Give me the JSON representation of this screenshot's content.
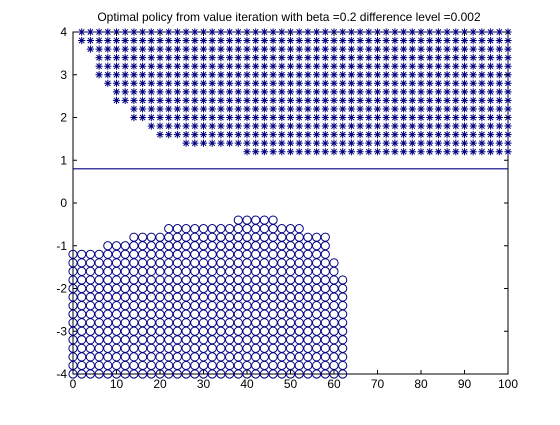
{
  "chart_data": {
    "type": "scatter",
    "title": "Optimal policy from value iteration with beta =0.2 difference level =0.002",
    "xlabel": "",
    "ylabel": "",
    "xlim": [
      0,
      100
    ],
    "ylim": [
      -4,
      4
    ],
    "xticks": [
      "0",
      "10",
      "20",
      "30",
      "40",
      "50",
      "60",
      "70",
      "80",
      "90",
      "100"
    ],
    "yticks": [
      "-4",
      "-3",
      "-2",
      "-1",
      "0",
      "1",
      "2",
      "3",
      "4"
    ],
    "grid": false,
    "colors": {
      "marker": "#000080",
      "axis": "#000000",
      "background": "#ffffff"
    },
    "reference_line": {
      "y": 0.8,
      "x_range": [
        0,
        100
      ]
    },
    "marker_step": {
      "x": 2,
      "y": 0.2
    },
    "series": [
      {
        "marker": "star",
        "description_x": "x values 2..100 step 2; for each x, stars from y_min up to 4",
        "y_min_by_x": [
          [
            2,
            3.8
          ],
          [
            4,
            3.6
          ],
          [
            6,
            3.0
          ],
          [
            8,
            2.8
          ],
          [
            10,
            2.4
          ],
          [
            12,
            2.4
          ],
          [
            14,
            2.0
          ],
          [
            16,
            2.0
          ],
          [
            18,
            1.8
          ],
          [
            20,
            1.6
          ],
          [
            22,
            1.6
          ],
          [
            24,
            1.6
          ],
          [
            26,
            1.4
          ],
          [
            28,
            1.4
          ],
          [
            30,
            1.4
          ],
          [
            32,
            1.4
          ],
          [
            34,
            1.4
          ],
          [
            36,
            1.4
          ],
          [
            38,
            1.4
          ],
          [
            40,
            1.2
          ],
          [
            42,
            1.2
          ],
          [
            44,
            1.2
          ],
          [
            46,
            1.2
          ],
          [
            48,
            1.2
          ],
          [
            50,
            1.2
          ],
          [
            52,
            1.2
          ],
          [
            54,
            1.2
          ],
          [
            56,
            1.2
          ],
          [
            58,
            1.2
          ],
          [
            60,
            1.2
          ],
          [
            62,
            1.2
          ],
          [
            64,
            1.2
          ],
          [
            66,
            1.2
          ],
          [
            68,
            1.2
          ],
          [
            70,
            1.2
          ],
          [
            72,
            1.2
          ],
          [
            74,
            1.2
          ],
          [
            76,
            1.2
          ],
          [
            78,
            1.2
          ],
          [
            80,
            1.2
          ],
          [
            82,
            1.2
          ],
          [
            84,
            1.2
          ],
          [
            86,
            1.2
          ],
          [
            88,
            1.2
          ],
          [
            90,
            1.2
          ],
          [
            92,
            1.2
          ],
          [
            94,
            1.2
          ],
          [
            96,
            1.2
          ],
          [
            98,
            1.2
          ],
          [
            100,
            1.2
          ]
        ]
      },
      {
        "marker": "circle",
        "description_x": "x values 0..62 step 2; for each x, circles from -4 up to y_max",
        "y_max_by_x": [
          [
            0,
            -1.2
          ],
          [
            2,
            -1.2
          ],
          [
            4,
            -1.2
          ],
          [
            6,
            -1.2
          ],
          [
            8,
            -1.0
          ],
          [
            10,
            -1.0
          ],
          [
            12,
            -1.0
          ],
          [
            14,
            -0.8
          ],
          [
            16,
            -0.8
          ],
          [
            18,
            -0.8
          ],
          [
            20,
            -0.8
          ],
          [
            22,
            -0.6
          ],
          [
            24,
            -0.6
          ],
          [
            26,
            -0.6
          ],
          [
            28,
            -0.6
          ],
          [
            30,
            -0.6
          ],
          [
            32,
            -0.6
          ],
          [
            34,
            -0.6
          ],
          [
            36,
            -0.6
          ],
          [
            38,
            -0.4
          ],
          [
            40,
            -0.4
          ],
          [
            42,
            -0.4
          ],
          [
            44,
            -0.4
          ],
          [
            46,
            -0.4
          ],
          [
            48,
            -0.6
          ],
          [
            50,
            -0.6
          ],
          [
            52,
            -0.6
          ],
          [
            54,
            -0.8
          ],
          [
            56,
            -0.8
          ],
          [
            58,
            -0.8
          ],
          [
            60,
            -1.4
          ],
          [
            62,
            -1.8
          ]
        ]
      }
    ]
  }
}
